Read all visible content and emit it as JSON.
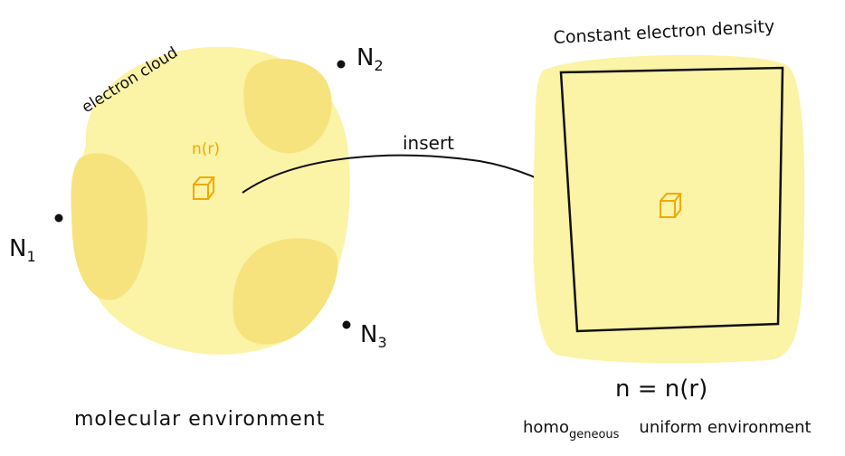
{
  "labels": {
    "electron_cloud": "electron cloud",
    "n_r_left": "n(r)",
    "n1": "N",
    "n1_sub": "1",
    "n2": "N",
    "n2_sub": "2",
    "n3": "N",
    "n3_sub": "3",
    "insert": "insert",
    "constant_density": "Constant electron density",
    "equation": "n = n(r)",
    "molecular_env": "molecular environment",
    "homogeneous_env_prefix": "homo",
    "homogeneous_env_sub": "geneous",
    "homogeneous_env_rest": "uniform environment"
  },
  "icons": {
    "left_cube": "cube-icon",
    "right_cube": "cube-icon"
  },
  "colors": {
    "cloud_light": "#fbf3a6",
    "cloud_dark": "#f6e37e",
    "accent_orange": "#f2a900",
    "ink": "#111111"
  }
}
